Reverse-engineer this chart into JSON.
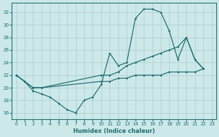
{
  "bg_color": "#cce8e8",
  "line_color": "#1a7070",
  "grid_color": "#aacccc",
  "xlabel": "Humidex (Indice chaleur)",
  "xlim": [
    -0.5,
    23.5
  ],
  "ylim": [
    15.0,
    33.5
  ],
  "yticks": [
    16,
    18,
    20,
    22,
    24,
    26,
    28,
    30,
    32
  ],
  "xticks": [
    0,
    1,
    2,
    3,
    4,
    5,
    6,
    7,
    8,
    9,
    10,
    11,
    12,
    13,
    14,
    15,
    16,
    17,
    18,
    19,
    20,
    21,
    22,
    23
  ],
  "line1_x": [
    0,
    1,
    2,
    3,
    4,
    5,
    6,
    7,
    8,
    9,
    10,
    11,
    12,
    13,
    14,
    15,
    16,
    17,
    18,
    19,
    20,
    21,
    22
  ],
  "line1_y": [
    22,
    21,
    19.5,
    19.0,
    18.5,
    17.5,
    16.5,
    16.0,
    18.0,
    18.5,
    20.5,
    25.5,
    23.5,
    24.0,
    31.0,
    32.5,
    32.5,
    32.0,
    29.0,
    24.5,
    28.0,
    24.5,
    23.0
  ],
  "line2_x": [
    0,
    1,
    2,
    3,
    10,
    11,
    12,
    13,
    14,
    15,
    16,
    17,
    18,
    19,
    20,
    21,
    22
  ],
  "line2_y": [
    22,
    21,
    20.0,
    20.0,
    22.0,
    22.0,
    22.5,
    23.5,
    24.0,
    24.5,
    25.0,
    25.5,
    26.0,
    26.5,
    28.0,
    24.5,
    23.0
  ],
  "line3_x": [
    0,
    1,
    2,
    3,
    10,
    11,
    12,
    13,
    14,
    15,
    16,
    17,
    18,
    19,
    20,
    21,
    22
  ],
  "line3_y": [
    22,
    21,
    20.0,
    20.0,
    21.0,
    21.0,
    21.5,
    21.5,
    22.0,
    22.0,
    22.0,
    22.0,
    22.5,
    22.5,
    22.5,
    22.5,
    23.0
  ],
  "xlabel_fontsize": 6,
  "tick_fontsize": 5
}
